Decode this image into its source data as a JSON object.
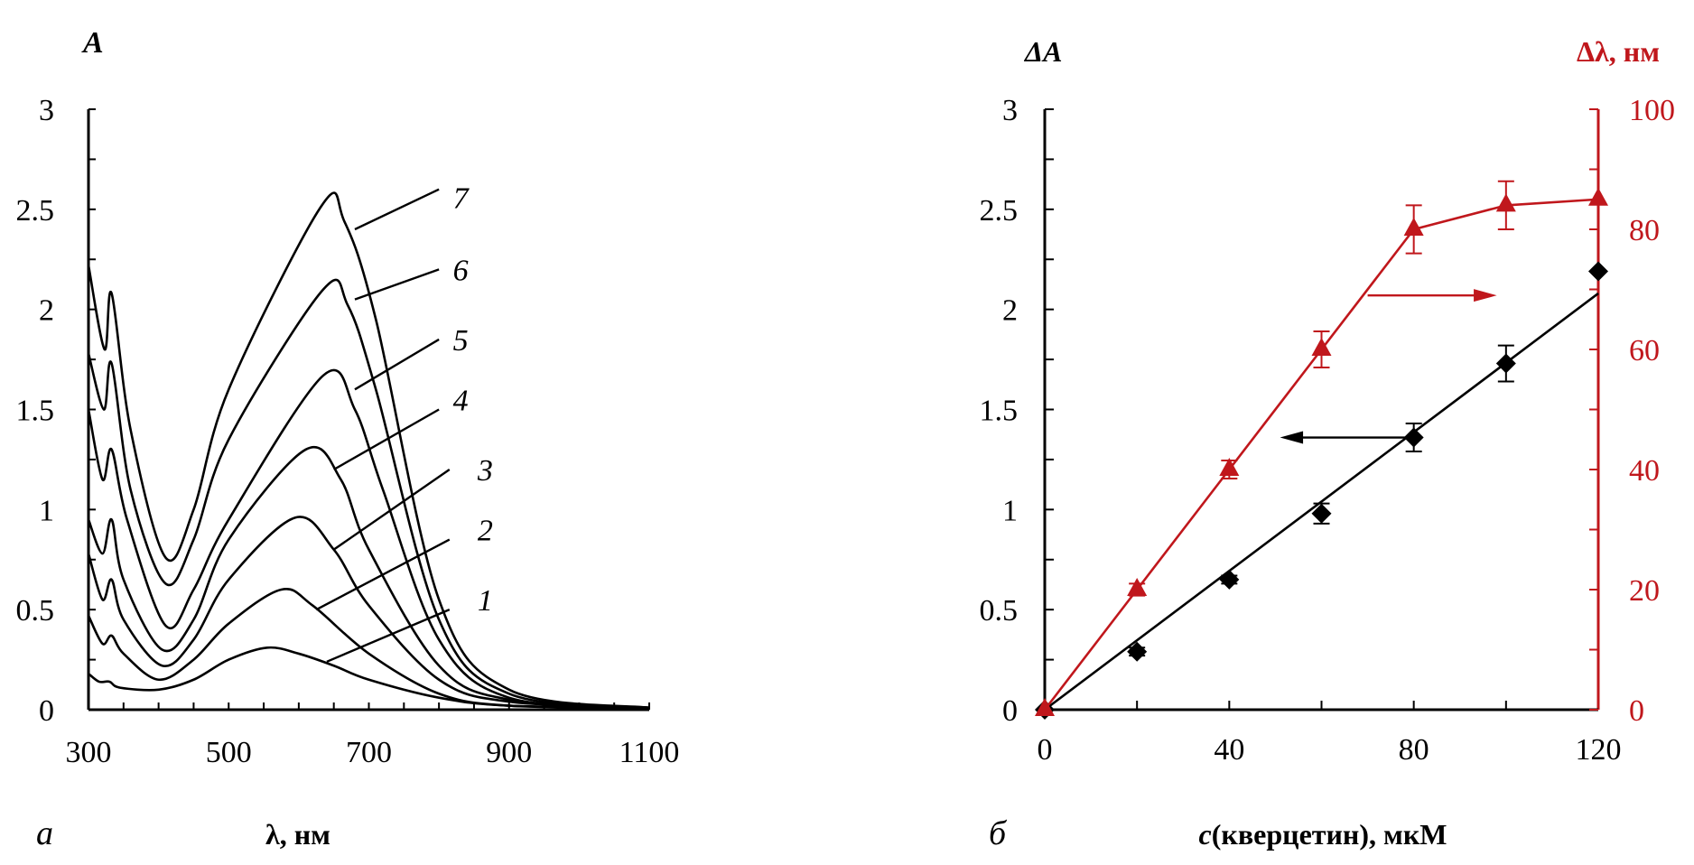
{
  "chart_data": [
    {
      "type": "line",
      "panel_label": "а",
      "ylabel": "A",
      "xlabel": "λ, нм",
      "xlim": [
        300,
        1100
      ],
      "ylim": [
        0,
        3
      ],
      "xticks": [
        "300",
        "500",
        "700",
        "900",
        "1100"
      ],
      "yticks": [
        "0",
        "0.5",
        "1",
        "1.5",
        "2",
        "2.5",
        "3"
      ],
      "grid": false,
      "series": [
        {
          "name": "1",
          "x": [
            300,
            315,
            330,
            345,
            400,
            450,
            500,
            555,
            600,
            650,
            700,
            800,
            900,
            1100
          ],
          "y": [
            0.18,
            0.14,
            0.14,
            0.11,
            0.1,
            0.15,
            0.25,
            0.31,
            0.28,
            0.22,
            0.15,
            0.06,
            0.02,
            0.01
          ]
        },
        {
          "name": "2",
          "x": [
            300,
            320,
            333,
            350,
            400,
            450,
            500,
            575,
            620,
            700,
            800,
            900,
            1100
          ],
          "y": [
            0.47,
            0.33,
            0.37,
            0.28,
            0.15,
            0.25,
            0.43,
            0.6,
            0.52,
            0.28,
            0.08,
            0.02,
            0.01
          ]
        },
        {
          "name": "3",
          "x": [
            300,
            320,
            333,
            350,
            405,
            450,
            500,
            595,
            650,
            700,
            800,
            900,
            1100
          ],
          "y": [
            0.78,
            0.55,
            0.65,
            0.45,
            0.22,
            0.35,
            0.65,
            0.96,
            0.8,
            0.52,
            0.15,
            0.04,
            0.01
          ]
        },
        {
          "name": "4",
          "x": [
            300,
            320,
            333,
            350,
            405,
            450,
            500,
            610,
            660,
            700,
            800,
            900,
            1100
          ],
          "y": [
            0.95,
            0.78,
            0.95,
            0.65,
            0.3,
            0.45,
            0.85,
            1.3,
            1.15,
            0.8,
            0.22,
            0.05,
            0.01
          ]
        },
        {
          "name": "5",
          "x": [
            300,
            320,
            333,
            355,
            410,
            450,
            500,
            635,
            680,
            720,
            800,
            900,
            1100
          ],
          "y": [
            1.5,
            1.15,
            1.3,
            0.95,
            0.42,
            0.6,
            0.95,
            1.67,
            1.5,
            1.1,
            0.35,
            0.06,
            0.01
          ]
        },
        {
          "name": "6",
          "x": [
            300,
            322,
            333,
            360,
            410,
            450,
            500,
            635,
            670,
            710,
            800,
            900,
            1100
          ],
          "y": [
            1.78,
            1.5,
            1.73,
            1.1,
            0.63,
            0.85,
            1.35,
            2.1,
            2.02,
            1.6,
            0.45,
            0.08,
            0.01
          ]
        },
        {
          "name": "7",
          "x": [
            300,
            323,
            333,
            360,
            410,
            450,
            500,
            633,
            665,
            710,
            800,
            900,
            1100
          ],
          "y": [
            2.22,
            1.8,
            2.08,
            1.4,
            0.76,
            1.0,
            1.6,
            2.52,
            2.44,
            1.95,
            0.55,
            0.1,
            0.01
          ]
        }
      ],
      "curve_labels": [
        "1",
        "2",
        "3",
        "4",
        "5",
        "6",
        "7"
      ]
    },
    {
      "type": "scatter",
      "panel_label": "б",
      "xlabel_italic": "c",
      "xlabel": "(кверцетин),  мкМ",
      "ylabel_left": "ΔA",
      "ylabel_right": "Δλ, нм",
      "xlim": [
        0,
        120
      ],
      "ylim_left": [
        0,
        3
      ],
      "ylim_right": [
        0,
        100
      ],
      "xticks": [
        "0",
        "40",
        "80",
        "120"
      ],
      "yticks_left": [
        "0",
        "0.5",
        "1",
        "1.5",
        "2",
        "2.5",
        "3"
      ],
      "yticks_right": [
        "0",
        "20",
        "40",
        "60",
        "80",
        "100"
      ],
      "grid": false,
      "colors": {
        "left": "#000000",
        "right": "#c0171c"
      },
      "series": [
        {
          "axis": "left",
          "marker": "diamond",
          "x": [
            0,
            20,
            40,
            60,
            80,
            100,
            120
          ],
          "y": [
            0,
            0.29,
            0.65,
            0.98,
            1.36,
            1.73,
            2.19
          ],
          "err": [
            0,
            0.02,
            0.02,
            0.05,
            0.07,
            0.09,
            0
          ],
          "fit": [
            [
              0,
              0
            ],
            [
              120,
              2.08
            ]
          ]
        },
        {
          "axis": "right",
          "marker": "triangle",
          "x": [
            0,
            20,
            40,
            60,
            80,
            100,
            120
          ],
          "y": [
            0,
            20,
            40,
            60,
            80,
            84,
            85
          ],
          "err": [
            0,
            1,
            1.5,
            3,
            4,
            4,
            0
          ]
        }
      ]
    }
  ]
}
